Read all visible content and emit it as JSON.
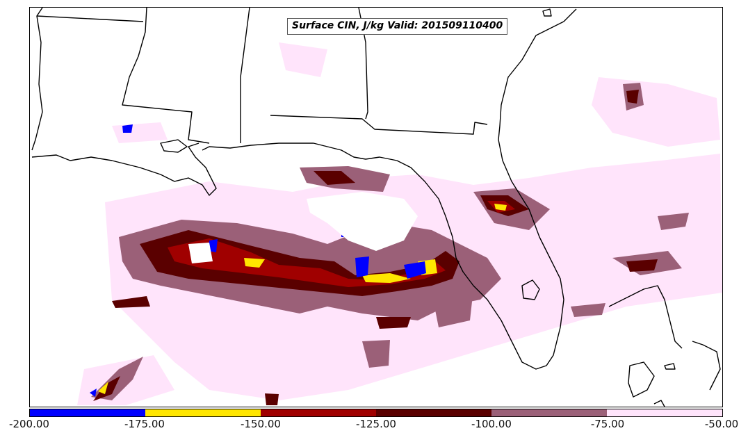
{
  "title": "Surface CIN, J/kg Valid: 201509110400",
  "colorbar": {
    "colors": [
      "#0000ff",
      "#ffe600",
      "#a00000",
      "#5a0000",
      "#9b6078",
      "#ffe4fb"
    ],
    "tick_labels": [
      "-200.00",
      "-175.00",
      "-150.00",
      "-125.00",
      "-100.00",
      "-75.00",
      "-50.00"
    ],
    "bins": [
      [
        -200,
        -175
      ],
      [
        -175,
        -150
      ],
      [
        -150,
        -125
      ],
      [
        -125,
        -100
      ],
      [
        -100,
        -75
      ],
      [
        -75,
        -50
      ]
    ]
  },
  "map": {
    "field": "Surface CIN",
    "units": "J/kg",
    "valid_time": "201509110400",
    "region_features": [
      "state-boundaries",
      "coastlines",
      "gulf-of-mexico",
      "florida-peninsula"
    ]
  }
}
